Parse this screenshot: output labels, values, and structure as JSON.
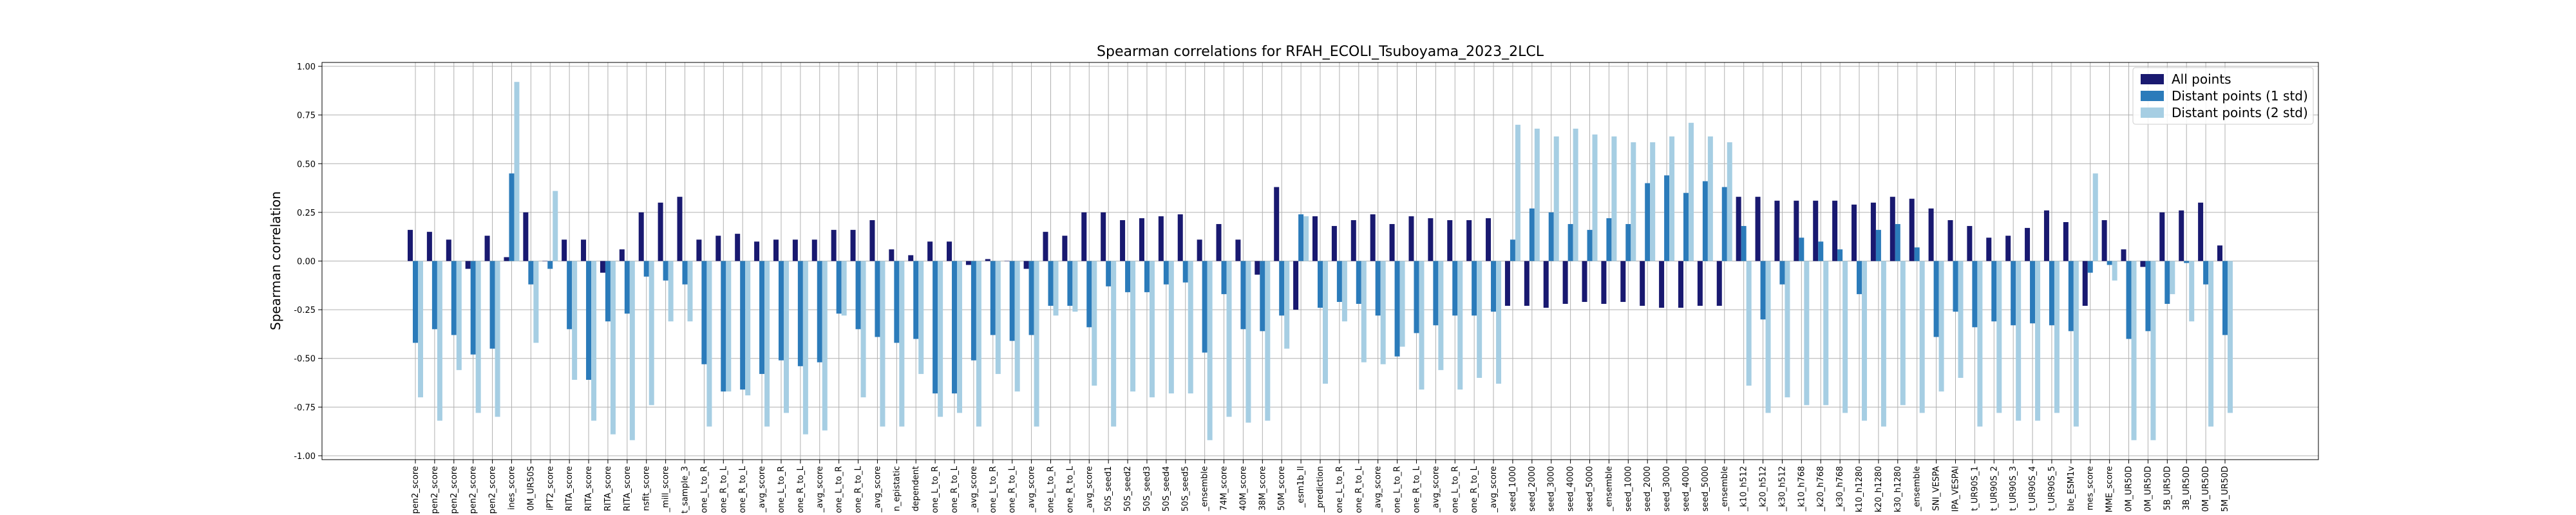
{
  "chart_data": {
    "type": "bar",
    "title": "Spearman correlations for RFAH_ECOLI_Tsuboyama_2023_2LCL",
    "xlabel": "",
    "ylabel": "Spearman correlation",
    "ylim": [
      -1.02,
      1.02
    ],
    "yticks": [
      "-1.00",
      "-0.75",
      "-0.50",
      "-0.25",
      "0.00",
      "0.25",
      "0.50",
      "0.75",
      "1.00"
    ],
    "ytick_values": [
      -1.0,
      -0.75,
      -0.5,
      -0.25,
      0.0,
      0.25,
      0.5,
      0.75,
      1.0
    ],
    "grid": true,
    "legend_position": "top-right",
    "categories": [
      "pen2_score",
      "pen2_score",
      "pen2_score",
      "pen2_score",
      "pen2_score",
      "ines_score",
      "0M_UR50S",
      "iPT2_score",
      "RITA_score",
      "RITA_score",
      "RITA_score",
      "RITA_score",
      "nsfit_score",
      "_mill_score",
      "t_sample_3",
      "one_L_to_R",
      "one_R_to_L",
      "one_R_to_L",
      "_avg_score",
      "one_L_to_R",
      "one_R_to_L",
      "_avg_score",
      "one_L_to_R",
      "one_R_to_L",
      "_avg_score",
      "n_epistatic",
      "dependent",
      "one_L_to_R",
      "one_R_to_L",
      "_avg_score",
      "one_L_to_R",
      "one_R_to_L",
      "_avg_score",
      "one_L_to_R",
      "one_R_to_L",
      "_avg_score",
      "50S_seed1",
      "50S_seed2",
      "50S_seed3",
      "50S_seed4",
      "50S_seed5",
      "_ensemble",
      "74M_score",
      "40M_score",
      "38M_score",
      "50M_score",
      "_esm1b_ll",
      "_prediction",
      "one_L_to_R",
      "one_R_to_L",
      "_avg_score",
      "one_L_to_R",
      "one_R_to_L",
      "_avg_score",
      "one_L_to_R",
      "one_R_to_L",
      "_avg_score",
      "seed_1000",
      "seed_2000",
      "seed_3000",
      "seed_4000",
      "seed_5000",
      "_ensemble",
      "seed_1000",
      "seed_2000",
      "seed_3000",
      "seed_4000",
      "seed_5000",
      "_ensemble",
      "_k10_h512",
      "_k20_h512",
      "_k30_h512",
      "_k10_h768",
      "_k20_h768",
      "_k30_h768",
      "k10_h1280",
      "k20_h1280",
      "k30_h1280",
      "_ensemble",
      "SNI_VESPA",
      "IPA_VESPAl",
      "t_UR90S_1",
      "t_UR90S_2",
      "t_UR90S_3",
      "t_UR90S_4",
      "t_UR90S_5",
      "ble_ESM1v",
      "mes_score",
      "MME_score",
      "0M_UR50D",
      "0M_UR50D",
      "5B_UR50D",
      "3B_UR50D",
      "0M_UR50D",
      "5M_UR50D"
    ],
    "series": [
      {
        "name": "All points",
        "color": "#191970",
        "values": [
          0.16,
          0.15,
          0.11,
          -0.04,
          0.13,
          0.02,
          0.25,
          0.0,
          0.11,
          0.11,
          -0.06,
          0.06,
          0.25,
          0.3,
          0.33,
          0.11,
          0.13,
          0.14,
          0.1,
          0.11,
          0.11,
          0.11,
          0.16,
          0.16,
          0.21,
          0.06,
          0.03,
          0.1,
          0.1,
          -0.02,
          0.01,
          0.0,
          -0.04,
          0.15,
          0.13,
          0.25,
          0.25,
          0.21,
          0.22,
          0.23,
          0.24,
          0.11,
          0.19,
          0.11,
          -0.07,
          0.38,
          -0.25,
          0.23,
          0.18,
          0.21,
          0.24,
          0.19,
          0.23,
          0.22,
          0.21,
          0.21,
          0.22,
          -0.23,
          -0.23,
          -0.24,
          -0.22,
          -0.21,
          -0.22,
          -0.21,
          -0.23,
          -0.24,
          -0.24,
          -0.23,
          -0.23,
          0.33,
          0.33,
          0.31,
          0.31,
          0.31,
          0.31,
          0.29,
          0.3,
          0.33,
          0.32,
          0.27,
          0.21,
          0.18,
          0.12,
          0.13,
          0.17,
          0.26,
          0.2,
          -0.23,
          0.21,
          0.06,
          -0.03,
          0.25,
          0.26,
          0.3,
          0.08
        ]
      },
      {
        "name": "Distant points (1 std)",
        "color": "#2b7bba",
        "values": [
          -0.42,
          -0.35,
          -0.38,
          -0.48,
          -0.45,
          0.45,
          -0.12,
          -0.04,
          -0.35,
          -0.61,
          -0.31,
          -0.27,
          -0.08,
          -0.1,
          -0.12,
          -0.53,
          -0.67,
          -0.66,
          -0.58,
          -0.51,
          -0.54,
          -0.52,
          -0.27,
          -0.35,
          -0.39,
          -0.42,
          -0.4,
          -0.68,
          -0.68,
          -0.51,
          -0.38,
          -0.41,
          -0.38,
          -0.23,
          -0.23,
          -0.34,
          -0.13,
          -0.16,
          -0.16,
          -0.12,
          -0.11,
          -0.47,
          -0.17,
          -0.35,
          -0.36,
          -0.28,
          0.24,
          -0.24,
          -0.21,
          -0.22,
          -0.28,
          -0.49,
          -0.37,
          -0.33,
          -0.28,
          -0.28,
          -0.26,
          0.11,
          0.27,
          0.25,
          0.19,
          0.16,
          0.22,
          0.19,
          0.4,
          0.44,
          0.35,
          0.41,
          0.38,
          0.18,
          -0.3,
          -0.12,
          0.12,
          0.1,
          0.06,
          -0.17,
          0.16,
          0.19,
          0.07,
          -0.39,
          -0.26,
          -0.34,
          -0.31,
          -0.33,
          -0.32,
          -0.33,
          -0.36,
          -0.06,
          -0.02,
          -0.4,
          -0.36,
          -0.22,
          -0.01,
          -0.12,
          -0.38
        ]
      },
      {
        "name": "Distant points (2 std)",
        "color": "#a6cee3",
        "values": [
          -0.7,
          -0.82,
          -0.56,
          -0.78,
          -0.8,
          0.92,
          -0.42,
          0.36,
          -0.61,
          -0.82,
          -0.89,
          -0.92,
          -0.74,
          -0.31,
          -0.31,
          -0.85,
          -0.67,
          -0.69,
          -0.85,
          -0.78,
          -0.89,
          -0.87,
          -0.28,
          -0.7,
          -0.85,
          -0.85,
          -0.58,
          -0.8,
          -0.78,
          -0.85,
          -0.58,
          -0.67,
          -0.85,
          -0.28,
          -0.26,
          -0.64,
          -0.85,
          -0.67,
          -0.7,
          -0.68,
          -0.68,
          -0.92,
          -0.8,
          -0.83,
          -0.82,
          -0.45,
          0.23,
          -0.63,
          -0.31,
          -0.52,
          -0.53,
          -0.44,
          -0.66,
          -0.56,
          -0.66,
          -0.6,
          -0.63,
          0.7,
          0.68,
          0.64,
          0.68,
          0.65,
          0.64,
          0.61,
          0.61,
          0.64,
          0.71,
          0.64,
          0.61,
          -0.64,
          -0.78,
          -0.7,
          -0.74,
          -0.74,
          -0.78,
          -0.82,
          -0.85,
          -0.74,
          -0.78,
          -0.67,
          -0.6,
          -0.85,
          -0.78,
          -0.82,
          -0.82,
          -0.78,
          -0.85,
          0.45,
          -0.1,
          -0.92,
          -0.92,
          -0.17,
          -0.31,
          -0.85,
          -0.78
        ]
      }
    ]
  }
}
